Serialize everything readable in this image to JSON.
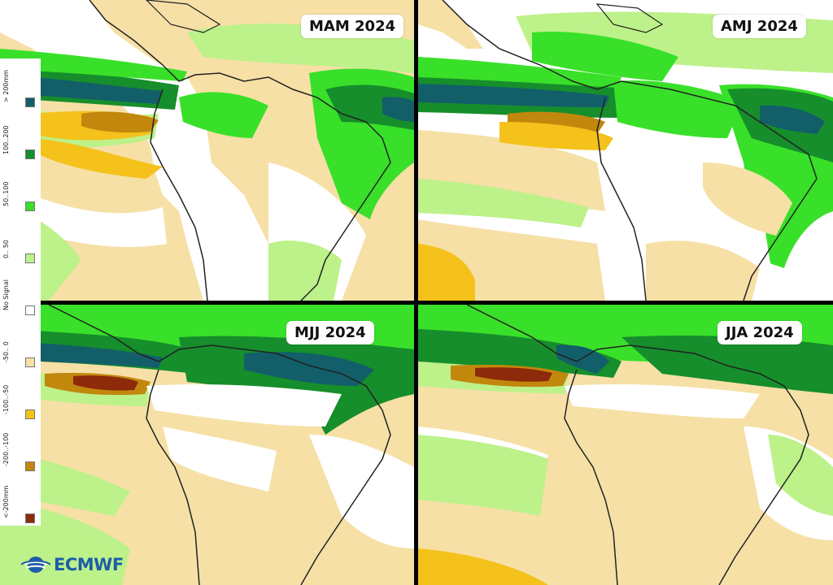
{
  "panels": [
    {
      "id": "tl",
      "title": "MAM 2024"
    },
    {
      "id": "tr",
      "title": "AMJ 2024"
    },
    {
      "id": "bl",
      "title": "MJJ 2024"
    },
    {
      "id": "br",
      "title": "JJA 2024"
    }
  ],
  "legend": {
    "items": [
      {
        "label": "> 200mm",
        "color": "#125f6a"
      },
      {
        "label": "100..200",
        "color": "#168e2b"
      },
      {
        "label": "50..100",
        "color": "#39e029"
      },
      {
        "label": "0.. 50",
        "color": "#bdf18a"
      },
      {
        "label": "No Signal",
        "color": "#ffffff"
      },
      {
        "label": "-50.. 0",
        "color": "#f6e0a6"
      },
      {
        "label": "-100..-50",
        "color": "#f4c21a"
      },
      {
        "label": "-200..-100",
        "color": "#c2870d"
      },
      {
        "label": "<-200mm",
        "color": "#8c2a0a"
      }
    ]
  },
  "logo": {
    "text": "ECMWF",
    "color": "#1d5ea8"
  },
  "colors": {
    "pos_strong": "#125f6a",
    "pos_high": "#168e2b",
    "pos_mid": "#39e029",
    "pos_low": "#bdf18a",
    "neg_low": "#f6e0a6",
    "neg_mid": "#f4c21a",
    "neg_high": "#c2870d",
    "neg_strong": "#8c2a0a"
  }
}
